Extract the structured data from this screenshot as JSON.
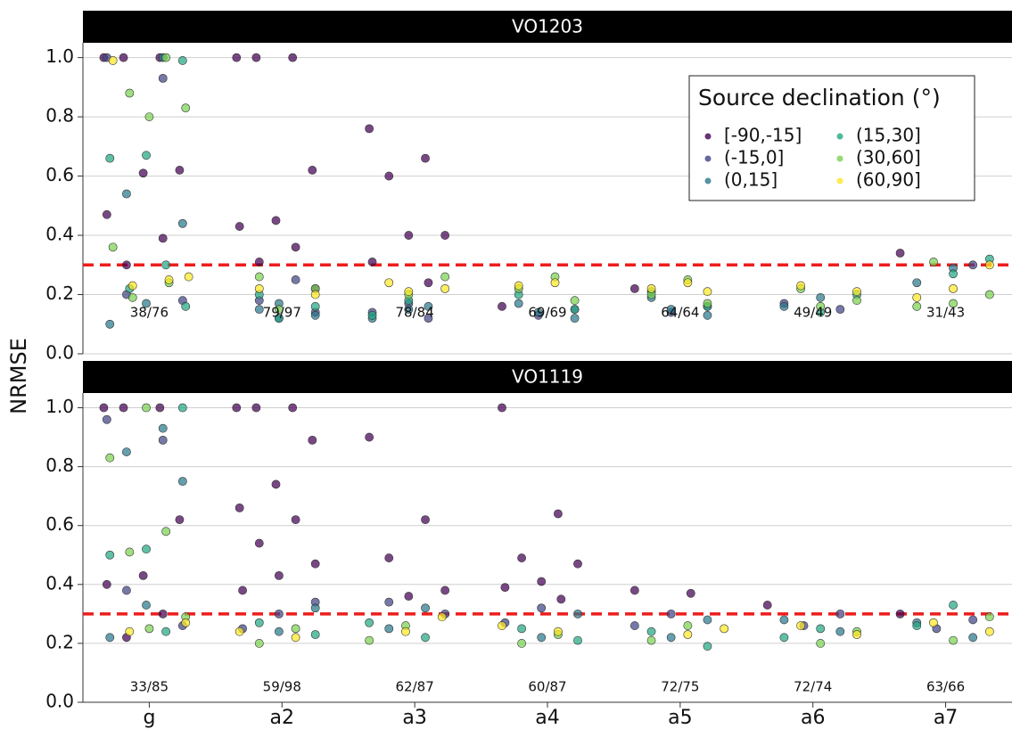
{
  "chart_data": {
    "type": "beeswarm",
    "ylabel": "NRMSE",
    "legend_title": "Source declination (°)",
    "categories": [
      "g",
      "a2",
      "a3",
      "a4",
      "a5",
      "a6",
      "a7"
    ],
    "ylim": [
      0,
      1.05
    ],
    "yticks": [
      {
        "value": 0,
        "label": "0.0"
      },
      0.2,
      0.4,
      0.6,
      0.8,
      {
        "value": 1,
        "label": "1.0"
      }
    ],
    "grid": true,
    "threshold": 0.3,
    "threshold_color": "#ee1c1c",
    "facets": [
      {
        "title": "VO1203",
        "count_labels": [
          "38/76",
          "79/97",
          "78/84",
          "69/69",
          "64/64",
          "49/49",
          "31/43"
        ]
      },
      {
        "title": "VO1119",
        "count_labels": [
          "33/85",
          "59/98",
          "62/87",
          "60/87",
          "72/75",
          "72/74",
          "63/66"
        ]
      }
    ],
    "series": [
      {
        "name": "[-90,-15]",
        "color": "#440154",
        "values": [
          [
            [
              1,
              1,
              1,
              0.62,
              0.61,
              0.47,
              0.39,
              0.3
            ],
            [
              1,
              1,
              1,
              0.62,
              0.45,
              0.43,
              0.36,
              0.31,
              0.22
            ],
            [
              0.76,
              0.66,
              0.6,
              0.4,
              0.4,
              0.31,
              0.24
            ],
            [
              0.16
            ],
            [
              0.22
            ],
            [],
            [
              0.34
            ]
          ],
          [
            [
              1,
              1,
              1,
              0.62,
              0.43,
              0.4,
              0.3,
              0.22
            ],
            [
              1,
              1,
              1,
              0.89,
              0.74,
              0.66,
              0.62,
              0.54,
              0.47,
              0.43,
              0.38
            ],
            [
              0.9,
              0.62,
              0.49,
              0.38,
              0.36
            ],
            [
              1,
              0.64,
              0.49,
              0.47,
              0.41,
              0.39,
              0.35
            ],
            [
              0.38,
              0.37
            ],
            [
              0.33
            ],
            [
              0.3
            ]
          ]
        ]
      },
      {
        "name": "(-15,0]",
        "color": "#414487",
        "values": [
          [
            [
              1,
              0.93,
              0.2,
              0.18
            ],
            [
              0.25,
              0.18,
              0.14,
              0.12
            ],
            [
              0.17,
              0.14,
              0.12
            ],
            [
              0.15,
              0.13
            ],
            [
              0.16,
              0.14
            ],
            [
              0.17,
              0.15
            ],
            [
              0.3
            ]
          ],
          [
            [
              0.96,
              0.89,
              0.38,
              0.26
            ],
            [
              0.34,
              0.3,
              0.25
            ],
            [
              0.34,
              0.3
            ],
            [
              0.32,
              0.27
            ],
            [
              0.3,
              0.26
            ],
            [
              0.3,
              0.26
            ],
            [
              0.28,
              0.25
            ]
          ]
        ]
      },
      {
        "name": "(0,15]",
        "color": "#2a788e",
        "values": [
          [
            [
              1,
              0.54,
              0.44,
              0.17,
              0.1
            ],
            [
              0.15,
              0.13,
              0.17
            ],
            [
              0.15,
              0.12,
              0.16
            ],
            [
              0.17,
              0.12,
              0.14
            ],
            [
              0.19,
              0.13,
              0.15
            ],
            [
              0.19,
              0.16
            ],
            [
              0.29,
              0.24
            ]
          ],
          [
            [
              0.93,
              0.85,
              0.75,
              0.33,
              0.22
            ],
            [
              0.32,
              0.24
            ],
            [
              0.32,
              0.25
            ],
            [
              0.3,
              0.22
            ],
            [
              0.28,
              0.22
            ],
            [
              0.28,
              0.24
            ],
            [
              0.27,
              0.22
            ]
          ]
        ]
      },
      {
        "name": "(15,30]",
        "color": "#22a884",
        "values": [
          [
            [
              0.99,
              0.67,
              0.66,
              0.3,
              0.22,
              0.16
            ],
            [
              0.2,
              0.16,
              0.12
            ],
            [
              0.18,
              0.13
            ],
            [
              0.2,
              0.15
            ],
            [
              0.21,
              0.16
            ],
            [
              0.2,
              0.14
            ],
            [
              0.32,
              0.27
            ]
          ],
          [
            [
              1,
              0.52,
              0.5,
              0.24
            ],
            [
              0.27,
              0.23
            ],
            [
              0.27,
              0.22
            ],
            [
              0.25,
              0.21
            ],
            [
              0.24,
              0.19
            ],
            [
              0.25,
              0.22
            ],
            [
              0.33,
              0.26
            ]
          ]
        ]
      },
      {
        "name": "(30,60]",
        "color": "#7ad151",
        "values": [
          [
            [
              1,
              0.88,
              0.83,
              0.8,
              0.36,
              0.24,
              0.19
            ],
            [
              0.26,
              0.22,
              0.15
            ],
            [
              0.26,
              0.2
            ],
            [
              0.26,
              0.22,
              0.18
            ],
            [
              0.25,
              0.2,
              0.17
            ],
            [
              0.22,
              0.18,
              0.16
            ],
            [
              0.31,
              0.2,
              0.17,
              0.16
            ]
          ],
          [
            [
              1,
              0.83,
              0.58,
              0.51,
              0.29,
              0.25
            ],
            [
              0.25,
              0.2
            ],
            [
              0.26,
              0.21
            ],
            [
              0.23,
              0.2
            ],
            [
              0.26,
              0.21
            ],
            [
              0.24,
              0.2
            ],
            [
              0.29,
              0.21
            ]
          ]
        ]
      },
      {
        "name": "(60,90]",
        "color": "#fde725",
        "values": [
          [
            [
              0.99,
              0.25,
              0.23,
              0.26
            ],
            [
              0.22,
              0.2
            ],
            [
              0.24,
              0.22,
              0.21
            ],
            [
              0.24,
              0.23
            ],
            [
              0.24,
              0.22,
              0.21
            ],
            [
              0.23,
              0.21
            ],
            [
              0.3,
              0.22,
              0.19
            ]
          ],
          [
            [
              0.24,
              0.27
            ],
            [
              0.24,
              0.22
            ],
            [
              0.29,
              0.24
            ],
            [
              0.26,
              0.24
            ],
            [
              0.25,
              0.23
            ],
            [
              0.26,
              0.23
            ],
            [
              0.27,
              0.24
            ]
          ]
        ]
      }
    ]
  }
}
